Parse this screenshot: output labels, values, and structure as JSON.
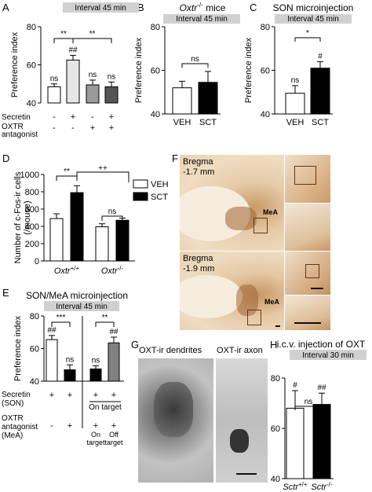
{
  "panels": {
    "A": {
      "letter": "A",
      "header": "Interval 45 min"
    },
    "B": {
      "letter": "B",
      "title_prefix": "Oxtr",
      "title_sup": "-/-",
      "title_suffix": " mice",
      "header": "Interval 45 min"
    },
    "C": {
      "letter": "C",
      "title": "SON microinjection",
      "header": "Interval 45 min"
    },
    "D": {
      "letter": "D"
    },
    "E": {
      "letter": "E",
      "title": "SON/MeA microinjection",
      "header": "Interval 45 min"
    },
    "F": {
      "letter": "F",
      "bregma_top": [
        "Bregma",
        "-1.7 mm"
      ],
      "bregma_bottom": [
        "Bregma",
        "-1.9 mm"
      ],
      "region": "MeA"
    },
    "G": {
      "letter": "G",
      "label_left": "OXT-ir dendrites",
      "label_right": "OXT-ir axon"
    },
    "H": {
      "letter": "H",
      "title": "i.c.v. injection of OXT",
      "header": "Interval 30 min"
    }
  },
  "chart_data": [
    {
      "id": "A",
      "type": "bar",
      "ylabel": "Preference index",
      "ylim": [
        40,
        80
      ],
      "yticks": [
        40,
        60,
        80
      ],
      "categories": [
        "1",
        "2",
        "3",
        "4"
      ],
      "values": [
        48.5,
        62.5,
        49.5,
        48.5
      ],
      "errors": [
        1.5,
        2.5,
        2.5,
        2.5
      ],
      "bar_colors": [
        "#ffffff",
        "#e6e6e6",
        "#9a9a9a",
        "#555555"
      ],
      "bar_labels": [
        "ns",
        "##",
        "ns",
        "ns"
      ],
      "brackets": [
        {
          "from": 0,
          "to": 1,
          "label": "**"
        },
        {
          "from": 1,
          "to": 3,
          "label": "**"
        }
      ],
      "row_labels": [
        "Secretin",
        "OXTR",
        "antagonist"
      ],
      "rows": [
        [
          "-",
          "+",
          "-",
          "+"
        ],
        [
          "-",
          "-",
          "+",
          "+"
        ]
      ]
    },
    {
      "id": "B",
      "type": "bar",
      "ylabel": "Preference index",
      "ylim": [
        40,
        80
      ],
      "yticks": [
        40,
        60,
        80
      ],
      "categories": [
        "VEH",
        "SCT"
      ],
      "values": [
        52,
        54.5
      ],
      "errors": [
        3,
        5
      ],
      "bar_colors": [
        "#ffffff",
        "#000000"
      ],
      "bar_labels": [
        "",
        ""
      ],
      "brackets": [
        {
          "from": 0,
          "to": 1,
          "label": "ns"
        }
      ]
    },
    {
      "id": "C",
      "type": "bar",
      "ylabel": "Preference index",
      "ylim": [
        40,
        80
      ],
      "yticks": [
        40,
        60,
        80
      ],
      "categories": [
        "VEH",
        "SCT"
      ],
      "values": [
        49.5,
        61
      ],
      "errors": [
        3.5,
        3
      ],
      "bar_colors": [
        "#ffffff",
        "#000000"
      ],
      "bar_labels": [
        "ns",
        "#"
      ],
      "brackets": [
        {
          "from": 0,
          "to": 1,
          "label": "*"
        }
      ]
    },
    {
      "id": "D",
      "type": "bar",
      "ylabel": "Number of c-Fos-ir cells",
      "ylabel2": "(/mouse)",
      "ylim": [
        0,
        1000
      ],
      "yticks": [
        0,
        200,
        400,
        600,
        800,
        1000
      ],
      "categories": [
        "Oxtr +/+",
        "Oxtr -/-"
      ],
      "series": [
        {
          "name": "VEH",
          "color": "#ffffff",
          "values": [
            490,
            395
          ],
          "errors": [
            55,
            35
          ]
        },
        {
          "name": "SCT",
          "color": "#000000",
          "values": [
            790,
            470
          ],
          "errors": [
            80,
            25
          ]
        }
      ],
      "group_labels": [
        {
          "base": "Oxtr",
          "sup": "+/+"
        },
        {
          "base": "Oxtr",
          "sup": "-/-"
        }
      ],
      "legend": "top-right",
      "brackets": [
        {
          "type": "within",
          "group": 0,
          "label": "**"
        },
        {
          "type": "within",
          "group": 1,
          "label": "ns"
        },
        {
          "type": "between",
          "label": "++"
        }
      ]
    },
    {
      "id": "E",
      "type": "bar",
      "ylabel": "Preference index",
      "ylim": [
        40,
        80
      ],
      "yticks": [
        40,
        60,
        80
      ],
      "categories": [
        "1",
        "2",
        "3",
        "4"
      ],
      "values": [
        65.5,
        47,
        47.5,
        63.5
      ],
      "errors": [
        2.5,
        3,
        2,
        3.5
      ],
      "bar_colors": [
        "#ffffff",
        "#000000",
        "#000000",
        "#808080"
      ],
      "bar_labels": [
        "##",
        "ns",
        "ns",
        "##"
      ],
      "brackets": [
        {
          "from": 0,
          "to": 1,
          "label": "***"
        },
        {
          "from": 2,
          "to": 3,
          "label": "**"
        }
      ],
      "row_labels": [
        "Secretin",
        "(SON)",
        "OXTR",
        "antagonist",
        "(MeA)"
      ],
      "rows": [
        [
          "+",
          "+",
          "+",
          "+"
        ],
        [
          "-",
          "+",
          "+",
          "+"
        ]
      ],
      "on_target": "On target",
      "sub_labels": [
        "On",
        "target",
        "Off",
        "target"
      ]
    },
    {
      "id": "H",
      "type": "bar",
      "ylabel": "Preference index",
      "ylim": [
        40,
        80
      ],
      "yticks": [
        40,
        60,
        80
      ],
      "categories": [
        "Sctr +/+",
        "Sctr -/-"
      ],
      "group_labels": [
        {
          "base": "Sctr",
          "sup": "+/+"
        },
        {
          "base": "Sctr",
          "sup": "-/-"
        }
      ],
      "values": [
        68,
        69.5
      ],
      "errors": [
        7,
        4.5
      ],
      "bar_colors": [
        "#ffffff",
        "#000000"
      ],
      "bar_labels": [
        "#",
        "##"
      ],
      "brackets": [
        {
          "from": 0,
          "to": 1,
          "label": "ns"
        }
      ]
    }
  ]
}
